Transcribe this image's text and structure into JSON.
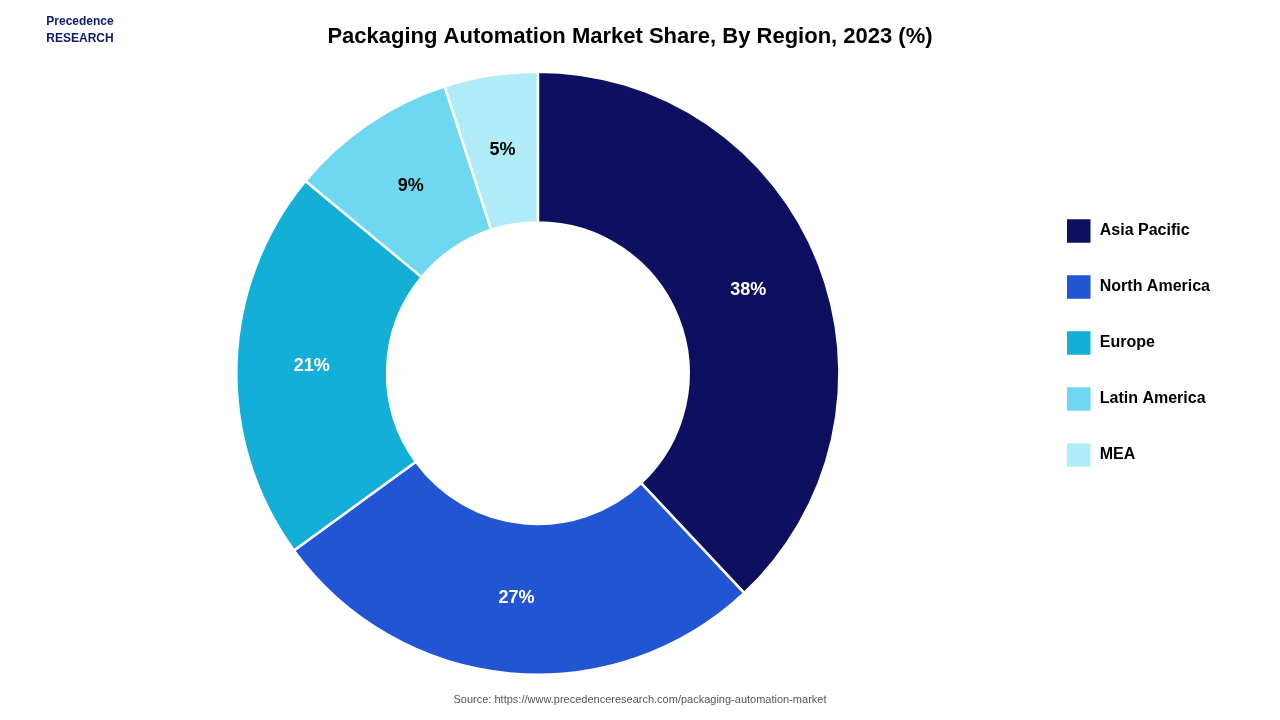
{
  "chart_data": {
    "type": "doughnut",
    "title": "Packaging Automation Market Share, By Region, 2023 (%)",
    "categories": [
      "Asia Pacific",
      "North America",
      "Europe",
      "Latin America",
      "MEA"
    ],
    "values": [
      38,
      27,
      21,
      9,
      5
    ],
    "value_labels": [
      "38%",
      "27%",
      "21%",
      "9%",
      "5%"
    ],
    "colors": [
      "#0d1060",
      "#2255d4",
      "#14afd6",
      "#6dd8f0",
      "#b0ecf8"
    ],
    "data_labels": true,
    "legend": "right",
    "annotations": [
      "Source: https://www.precedenceresearch.com/packaging-automation-market",
      "Precedence\nRESEARCH"
    ]
  }
}
